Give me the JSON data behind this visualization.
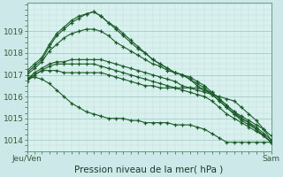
{
  "title": "Pression niveau de la mer( hPa )",
  "background_color": "#cce8e8",
  "plot_bg_color": "#d8f0ee",
  "grid_color_major": "#a8ccc8",
  "grid_color_minor": "#b8ddd8",
  "line_color": "#1a5c28",
  "ylim": [
    1013.5,
    1020.3
  ],
  "yticks": [
    1014,
    1015,
    1016,
    1017,
    1018,
    1019
  ],
  "xlabel_left": "Jeu/Ven",
  "xlabel_right": "Sam",
  "n_points": 34,
  "series": [
    [
      1016.8,
      1017.1,
      1017.3,
      1017.5,
      1017.6,
      1017.6,
      1017.7,
      1017.7,
      1017.7,
      1017.7,
      1017.7,
      1017.6,
      1017.5,
      1017.4,
      1017.3,
      1017.2,
      1017.1,
      1017.0,
      1016.9,
      1016.8,
      1016.7,
      1016.5,
      1016.4,
      1016.3,
      1016.2,
      1016.1,
      1016.0,
      1015.9,
      1015.8,
      1015.5,
      1015.2,
      1014.9,
      1014.5,
      1014.0
    ],
    [
      1017.0,
      1017.3,
      1017.6,
      1018.1,
      1018.4,
      1018.7,
      1018.9,
      1019.0,
      1019.1,
      1019.1,
      1019.0,
      1018.8,
      1018.5,
      1018.3,
      1018.1,
      1017.9,
      1017.7,
      1017.5,
      1017.4,
      1017.2,
      1017.1,
      1017.0,
      1016.9,
      1016.7,
      1016.5,
      1016.2,
      1015.9,
      1015.6,
      1015.3,
      1015.0,
      1014.8,
      1014.5,
      1014.2,
      1013.9
    ],
    [
      1017.1,
      1017.4,
      1017.7,
      1018.3,
      1018.8,
      1019.1,
      1019.4,
      1019.6,
      1019.8,
      1019.9,
      1019.7,
      1019.4,
      1019.1,
      1018.8,
      1018.5,
      1018.2,
      1018.0,
      1017.7,
      1017.5,
      1017.3,
      1017.1,
      1017.0,
      1016.8,
      1016.6,
      1016.4,
      1016.1,
      1015.8,
      1015.5,
      1015.2,
      1014.9,
      1014.7,
      1014.5,
      1014.2,
      1013.9
    ],
    [
      1017.2,
      1017.5,
      1017.8,
      1018.4,
      1018.9,
      1019.2,
      1019.5,
      1019.7,
      1019.8,
      1019.9,
      1019.7,
      1019.4,
      1019.2,
      1018.9,
      1018.6,
      1018.3,
      1018.0,
      1017.7,
      1017.5,
      1017.3,
      1017.1,
      1017.0,
      1016.8,
      1016.5,
      1016.3,
      1016.1,
      1015.8,
      1015.5,
      1015.2,
      1015.0,
      1014.8,
      1014.6,
      1014.3,
      1014.0
    ],
    [
      1016.7,
      1017.0,
      1017.2,
      1017.4,
      1017.5,
      1017.5,
      1017.5,
      1017.5,
      1017.5,
      1017.5,
      1017.4,
      1017.3,
      1017.2,
      1017.1,
      1017.0,
      1016.9,
      1016.8,
      1016.7,
      1016.6,
      1016.5,
      1016.4,
      1016.3,
      1016.2,
      1016.1,
      1016.0,
      1015.8,
      1015.5,
      1015.2,
      1015.0,
      1014.8,
      1014.6,
      1014.4,
      1014.2,
      1013.9
    ],
    [
      1016.8,
      1017.0,
      1017.2,
      1017.2,
      1017.2,
      1017.1,
      1017.1,
      1017.1,
      1017.1,
      1017.1,
      1017.1,
      1017.0,
      1016.9,
      1016.8,
      1016.7,
      1016.6,
      1016.5,
      1016.5,
      1016.4,
      1016.4,
      1016.4,
      1016.4,
      1016.4,
      1016.4,
      1016.3,
      1016.2,
      1015.9,
      1015.6,
      1015.3,
      1015.1,
      1014.9,
      1014.7,
      1014.5,
      1014.2
    ],
    [
      1016.8,
      1016.9,
      1016.8,
      1016.6,
      1016.3,
      1016.0,
      1015.7,
      1015.5,
      1015.3,
      1015.2,
      1015.1,
      1015.0,
      1015.0,
      1015.0,
      1014.9,
      1014.9,
      1014.8,
      1014.8,
      1014.8,
      1014.8,
      1014.7,
      1014.7,
      1014.7,
      1014.6,
      1014.5,
      1014.3,
      1014.1,
      1013.9,
      1013.9,
      1013.9,
      1013.9,
      1013.9,
      1013.9,
      1013.9
    ]
  ]
}
